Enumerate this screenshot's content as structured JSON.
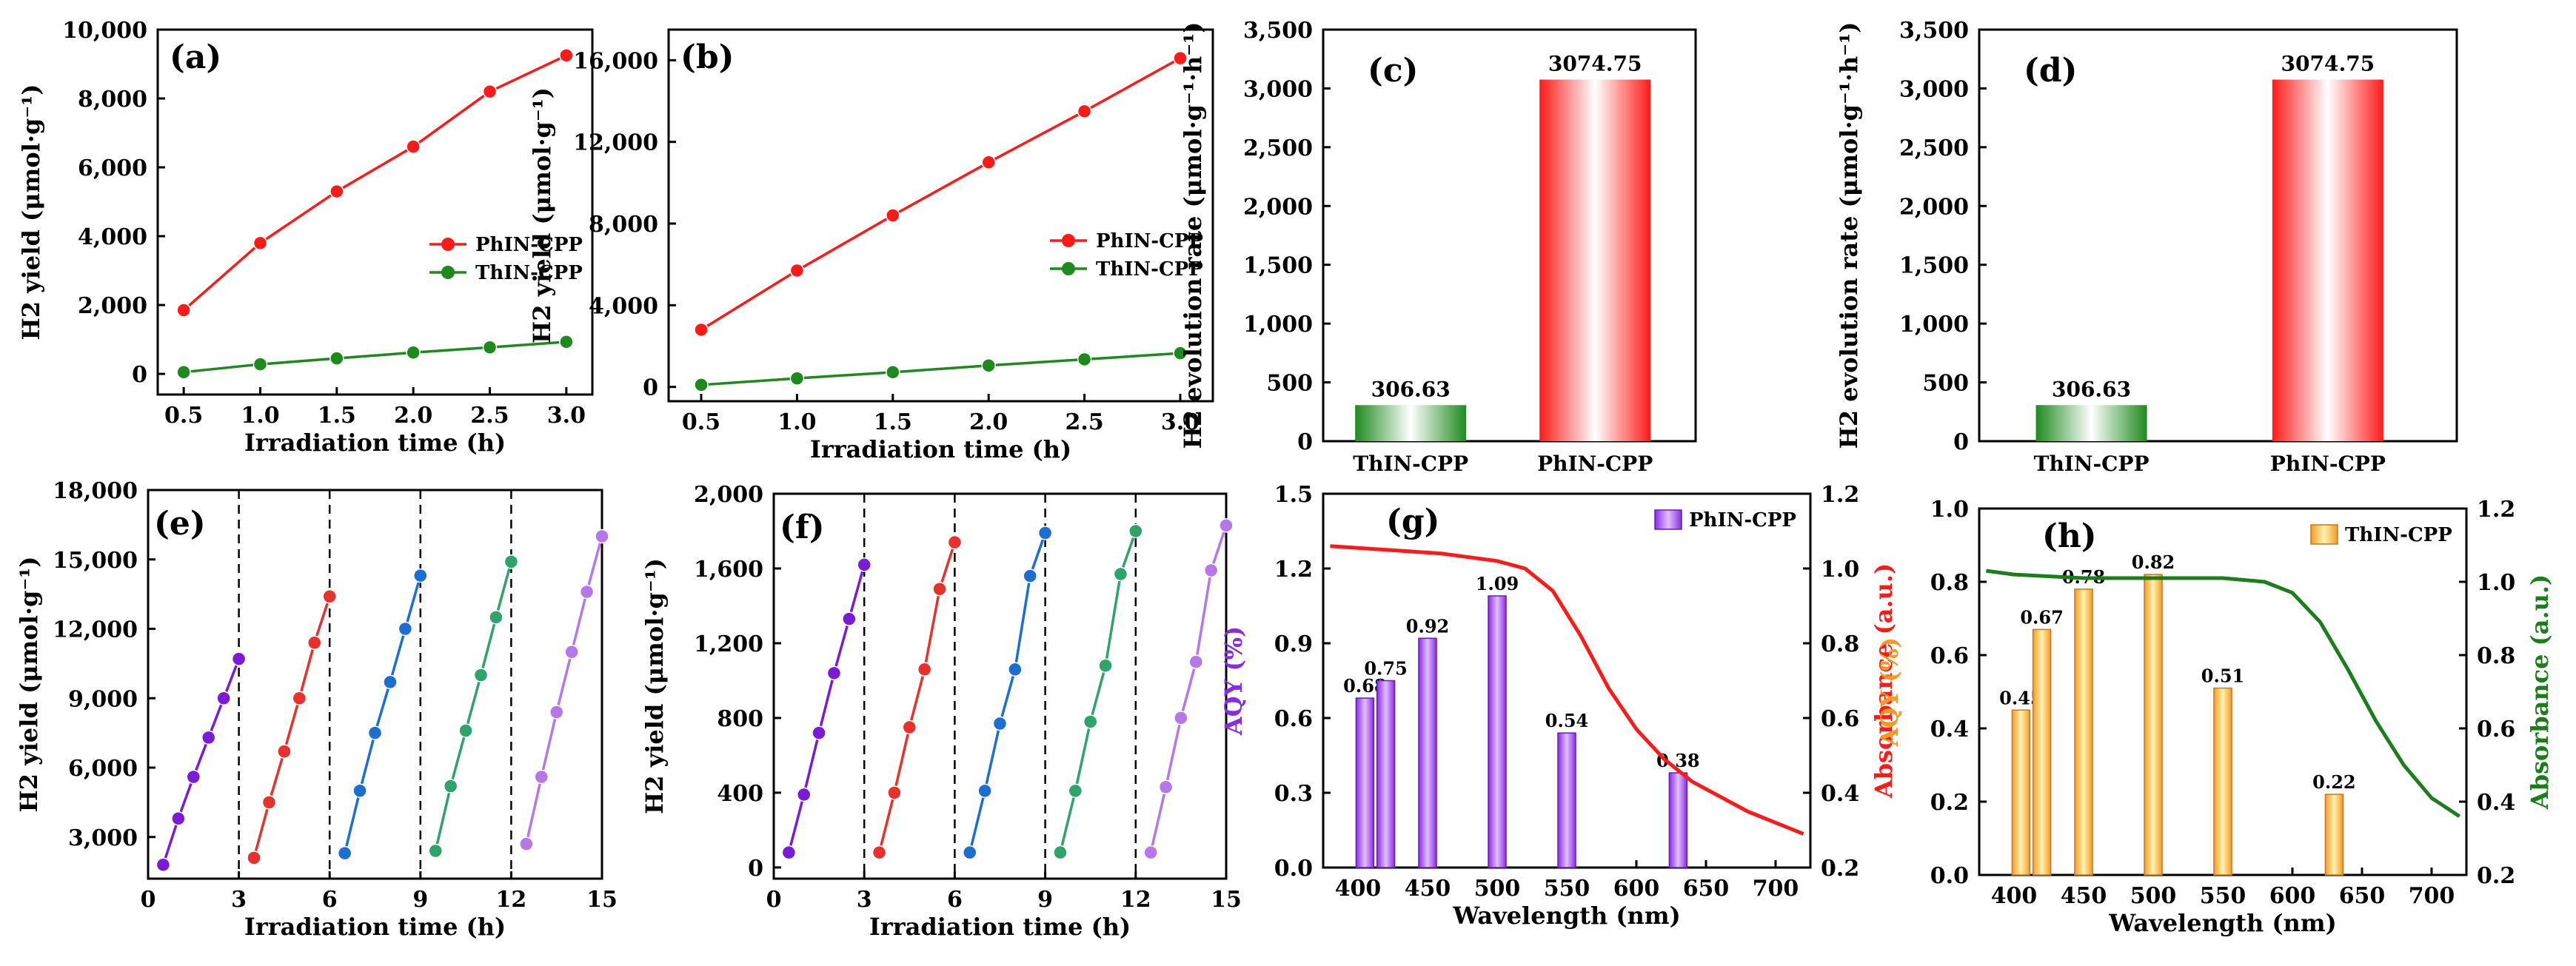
{
  "colors": {
    "phin": "#ff1a1a",
    "thin": "#1e8a1e",
    "cycle": [
      "#7a1bd6",
      "#e8302c",
      "#1c6fd0",
      "#2ea36a",
      "#b677e8"
    ],
    "aqy_purple": "#8a2be2",
    "abs_red": "#ff1a1a",
    "aqy_orange": "#f59a25",
    "abs_green": "#1b7e1b"
  },
  "chart_data": [
    {
      "id": "a",
      "type": "line",
      "panel_label": "(a)",
      "xlabel": "Irradiation time (h)",
      "ylabel": "H2 yield (μmol·g⁻¹)",
      "xlim": [
        0.33,
        3.17
      ],
      "ylim": [
        -600,
        10000
      ],
      "xticks": [
        0.5,
        1.0,
        1.5,
        2.0,
        2.5,
        3.0
      ],
      "xtick_labels": [
        "0.5",
        "1.0",
        "1.5",
        "2.0",
        "2.5",
        "3.0"
      ],
      "yticks": [
        0,
        2000,
        4000,
        6000,
        8000,
        10000
      ],
      "ytick_labels": [
        "0",
        "2,000",
        "4,000",
        "6,000",
        "8,000",
        "10,000"
      ],
      "legend": "center-right",
      "series": [
        {
          "name": "PhIN-CPP",
          "color": "#ff1a1a",
          "x": [
            0.5,
            1.0,
            1.5,
            2.0,
            2.5,
            3.0
          ],
          "y": [
            1850,
            3800,
            5300,
            6600,
            8200,
            9250
          ]
        },
        {
          "name": "ThIN-CPP",
          "color": "#1e8a1e",
          "x": [
            0.5,
            1.0,
            1.5,
            2.0,
            2.5,
            3.0
          ],
          "y": [
            50,
            280,
            450,
            620,
            770,
            930
          ]
        }
      ]
    },
    {
      "id": "b",
      "type": "line",
      "panel_label": "(b)",
      "xlabel": "Irradiation time (h)",
      "ylabel": "H2 yield (μmol·g⁻¹)",
      "xlim": [
        0.33,
        3.17
      ],
      "ylim": [
        -700,
        17500
      ],
      "xticks": [
        0.5,
        1.0,
        1.5,
        2.0,
        2.5,
        3.0
      ],
      "xtick_labels": [
        "0.5",
        "1.0",
        "1.5",
        "2.0",
        "2.5",
        "3.0"
      ],
      "yticks": [
        0,
        4000,
        8000,
        12000,
        16000
      ],
      "ytick_labels": [
        "0",
        "4,000",
        "8,000",
        "12,000",
        "16,000"
      ],
      "legend": "center-right",
      "series": [
        {
          "name": "PhIN-CPP",
          "color": "#ff1a1a",
          "x": [
            0.5,
            1.0,
            1.5,
            2.0,
            2.5,
            3.0
          ],
          "y": [
            2800,
            5700,
            8400,
            11000,
            13500,
            16100
          ]
        },
        {
          "name": "ThIN-CPP",
          "color": "#1e8a1e",
          "x": [
            0.5,
            1.0,
            1.5,
            2.0,
            2.5,
            3.0
          ],
          "y": [
            100,
            420,
            720,
            1050,
            1350,
            1650
          ]
        }
      ]
    },
    {
      "id": "c",
      "type": "bar",
      "panel_label": "(c)",
      "ylabel": "H2 evolution rate (μmol·g⁻¹·h⁻¹)",
      "ylim": [
        0,
        3500
      ],
      "yticks": [
        0,
        500,
        1000,
        1500,
        2000,
        2500,
        3000,
        3500
      ],
      "ytick_labels": [
        "0",
        "500",
        "1,000",
        "1,500",
        "2,000",
        "2,500",
        "3,000",
        "3,500"
      ],
      "categories": [
        "ThIN-CPP",
        "PhIN-CPP"
      ],
      "values": [
        306.63,
        3074.75
      ],
      "value_labels": [
        "306.63",
        "3074.75"
      ],
      "bar_colors": [
        "#1e8a1e",
        "#ff1a1a"
      ]
    },
    {
      "id": "d",
      "type": "bar",
      "panel_label": "(d)",
      "ylabel": "H2 evolution rate (μmol·g⁻¹·h⁻¹)",
      "ylim": [
        0,
        3500
      ],
      "yticks": [
        0,
        500,
        1000,
        1500,
        2000,
        2500,
        3000,
        3500
      ],
      "ytick_labels": [
        "0",
        "500",
        "1,000",
        "1,500",
        "2,000",
        "2,500",
        "3,000",
        "3,500"
      ],
      "categories": [
        "ThIN-CPP",
        "PhIN-CPP"
      ],
      "values": [
        306.63,
        3074.75
      ],
      "value_labels": [
        "306.63",
        "3074.75"
      ],
      "bar_colors": [
        "#1e8a1e",
        "#ff1a1a"
      ]
    },
    {
      "id": "e",
      "type": "line",
      "panel_label": "(e)",
      "xlabel": "Irradiation time (h)",
      "ylabel": "H2 yield (μmol·g⁻¹)",
      "xlim": [
        0,
        15
      ],
      "ylim": [
        1200,
        18000
      ],
      "xticks": [
        0,
        3,
        6,
        9,
        12,
        15
      ],
      "xtick_labels": [
        "0",
        "3",
        "6",
        "9",
        "12",
        "15"
      ],
      "yticks": [
        3000,
        6000,
        9000,
        12000,
        15000,
        18000
      ],
      "ytick_labels": [
        "3,000",
        "6,000",
        "9,000",
        "12,000",
        "15,000",
        "18,000"
      ],
      "vlines": [
        3,
        6,
        9,
        12
      ],
      "series": [
        {
          "x": [
            0.5,
            1.0,
            1.5,
            2.0,
            2.5,
            3.0
          ],
          "y": [
            1800,
            3800,
            5600,
            7300,
            9000,
            10700
          ]
        },
        {
          "x": [
            3.5,
            4.0,
            4.5,
            5.0,
            5.5,
            6.0
          ],
          "y": [
            2100,
            4500,
            6700,
            9000,
            11400,
            13400
          ]
        },
        {
          "x": [
            6.5,
            7.0,
            7.5,
            8.0,
            8.5,
            9.0
          ],
          "y": [
            2300,
            5000,
            7500,
            9700,
            12000,
            14300
          ]
        },
        {
          "x": [
            9.5,
            10.0,
            10.5,
            11.0,
            11.5,
            12.0
          ],
          "y": [
            2400,
            5200,
            7600,
            10000,
            12500,
            14900
          ]
        },
        {
          "x": [
            12.5,
            13.0,
            13.5,
            14.0,
            14.5,
            15.0
          ],
          "y": [
            2700,
            5600,
            8400,
            11000,
            13600,
            16000
          ]
        }
      ]
    },
    {
      "id": "f",
      "type": "line",
      "panel_label": "(f)",
      "xlabel": "Irradiation time (h)",
      "ylabel": "H2 yield (μmol·g⁻¹)",
      "xlim": [
        0,
        15
      ],
      "ylim": [
        -60,
        2000
      ],
      "xticks": [
        0,
        3,
        6,
        9,
        12,
        15
      ],
      "xtick_labels": [
        "0",
        "3",
        "6",
        "9",
        "12",
        "15"
      ],
      "yticks": [
        0,
        400,
        800,
        1200,
        1600,
        2000
      ],
      "ytick_labels": [
        "0",
        "400",
        "800",
        "1,200",
        "1,600",
        "2,000"
      ],
      "vlines": [
        3,
        6,
        9,
        12
      ],
      "series": [
        {
          "x": [
            0.5,
            1.0,
            1.5,
            2.0,
            2.5,
            3.0
          ],
          "y": [
            80,
            390,
            720,
            1040,
            1330,
            1620
          ]
        },
        {
          "x": [
            3.5,
            4.0,
            4.5,
            5.0,
            5.5,
            6.0
          ],
          "y": [
            80,
            400,
            750,
            1060,
            1490,
            1740
          ]
        },
        {
          "x": [
            6.5,
            7.0,
            7.5,
            8.0,
            8.5,
            9.0
          ],
          "y": [
            80,
            410,
            770,
            1060,
            1560,
            1790
          ]
        },
        {
          "x": [
            9.5,
            10.0,
            10.5,
            11.0,
            11.5,
            12.0
          ],
          "y": [
            80,
            410,
            780,
            1080,
            1570,
            1800
          ]
        },
        {
          "x": [
            12.5,
            13.0,
            13.5,
            14.0,
            14.5,
            15.0
          ],
          "y": [
            80,
            430,
            800,
            1100,
            1590,
            1830
          ]
        }
      ]
    },
    {
      "id": "g",
      "type": "bar",
      "panel_label": "(g)",
      "xlabel": "Wavelength (nm)",
      "ylabel": "AQY (%)",
      "y2label": "Absorbance (a.u.)",
      "xlim": [
        375,
        725
      ],
      "ylim": [
        0,
        1.5
      ],
      "y2lim": [
        0.2,
        1.2
      ],
      "xticks": [
        400,
        450,
        500,
        550,
        600,
        650,
        700
      ],
      "xtick_labels": [
        "400",
        "450",
        "500",
        "550",
        "600",
        "650",
        "700"
      ],
      "yticks": [
        0,
        0.3,
        0.6,
        0.9,
        1.2,
        1.5
      ],
      "ytick_labels": [
        "0.0",
        "0.3",
        "0.6",
        "0.9",
        "1.2",
        "1.5"
      ],
      "y2ticks": [
        0.2,
        0.4,
        0.6,
        0.8,
        1.0,
        1.2
      ],
      "y2tick_labels": [
        "0.2",
        "0.4",
        "0.6",
        "0.8",
        "1.0",
        "1.2"
      ],
      "legend": "top-right",
      "bar_legend": "PhIN-CPP",
      "categories": [
        405,
        420,
        450,
        500,
        550,
        630
      ],
      "values": [
        0.68,
        0.75,
        0.92,
        1.09,
        0.54,
        0.38
      ],
      "value_labels": [
        "0.68",
        "0.75",
        "0.92",
        "1.09",
        "0.54",
        "0.38"
      ],
      "bar_color": "#8a2be2",
      "absorbance": {
        "x": [
          380,
          420,
          460,
          500,
          520,
          540,
          560,
          580,
          600,
          620,
          640,
          660,
          680,
          700,
          720
        ],
        "y": [
          1.06,
          1.05,
          1.04,
          1.02,
          1.0,
          0.94,
          0.82,
          0.68,
          0.57,
          0.49,
          0.43,
          0.39,
          0.35,
          0.32,
          0.29
        ],
        "color": "#ff1a1a"
      }
    },
    {
      "id": "h",
      "type": "bar",
      "panel_label": "(h)",
      "xlabel": "Wavelength (nm)",
      "ylabel": "AQY (%)",
      "y2label": "Absorbance (a.u.)",
      "xlim": [
        375,
        725
      ],
      "ylim": [
        0,
        1.0
      ],
      "y2lim": [
        0.2,
        1.2
      ],
      "xticks": [
        400,
        450,
        500,
        550,
        600,
        650,
        700
      ],
      "xtick_labels": [
        "400",
        "450",
        "500",
        "550",
        "600",
        "650",
        "700"
      ],
      "yticks": [
        0,
        0.2,
        0.4,
        0.6,
        0.8,
        1.0
      ],
      "ytick_labels": [
        "0.0",
        "0.2",
        "0.4",
        "0.6",
        "0.8",
        "1.0"
      ],
      "y2ticks": [
        0.2,
        0.4,
        0.6,
        0.8,
        1.0,
        1.2
      ],
      "y2tick_labels": [
        "0.2",
        "0.4",
        "0.6",
        "0.8",
        "1.0",
        "1.2"
      ],
      "legend": "top-right",
      "bar_legend": "ThIN-CPP",
      "categories": [
        405,
        420,
        450,
        500,
        550,
        630
      ],
      "values": [
        0.45,
        0.67,
        0.78,
        0.82,
        0.51,
        0.22
      ],
      "value_labels": [
        "0.45",
        "0.67",
        "0.78",
        "0.82",
        "0.51",
        "0.22"
      ],
      "bar_color": "#f59a25",
      "absorbance": {
        "x": [
          380,
          400,
          450,
          500,
          550,
          580,
          600,
          620,
          640,
          660,
          680,
          700,
          720
        ],
        "y": [
          1.03,
          1.02,
          1.01,
          1.01,
          1.01,
          1.0,
          0.97,
          0.89,
          0.76,
          0.62,
          0.5,
          0.41,
          0.36
        ],
        "color": "#1b7e1b"
      }
    }
  ]
}
